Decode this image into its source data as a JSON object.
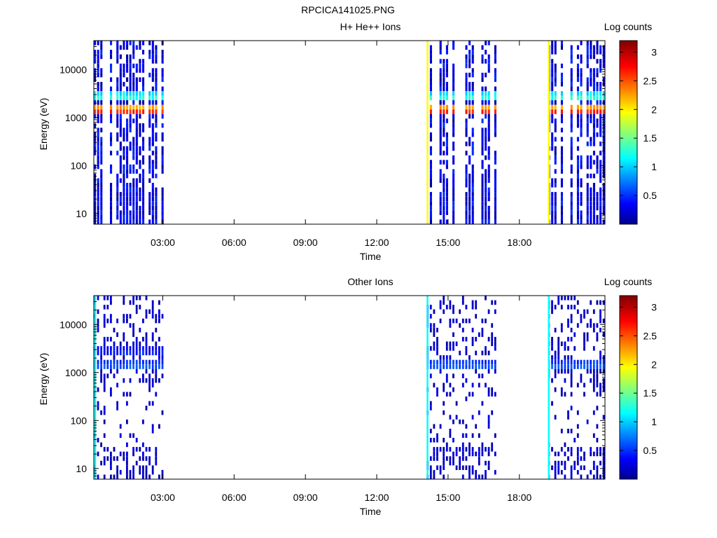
{
  "figure": {
    "title": "RPCICA141025.PNG"
  },
  "chart_data": [
    {
      "type": "heatmap",
      "title": "H+ He++ Ions",
      "xlabel": "Time",
      "ylabel": "Energy (eV)",
      "yscale": "log",
      "ylim": [
        6,
        40000
      ],
      "xlim_hours": [
        0.1,
        21.6
      ],
      "xticks": [
        "03:00",
        "06:00",
        "09:00",
        "12:00",
        "15:00",
        "18:00"
      ],
      "yticks": [
        "10",
        "100",
        "1000",
        "10000"
      ],
      "colorbar": {
        "label": "Log counts",
        "ticks": [
          "0.5",
          "1",
          "1.5",
          "2",
          "2.5",
          "3"
        ],
        "range": [
          0,
          3.2
        ]
      },
      "data_intervals_hours": [
        [
          0.1,
          3.0
        ],
        [
          14.1,
          17.0
        ],
        [
          19.2,
          21.6
        ]
      ],
      "dominant_bands": [
        {
          "energy_eV": 1400,
          "log_counts": 2.9,
          "intervals_hours": [
            [
              0.1,
              3.0
            ],
            [
              14.1,
              17.0
            ],
            [
              19.2,
              21.6
            ]
          ]
        },
        {
          "energy_eV": 2700,
          "log_counts": 1.4,
          "intervals_hours": [
            [
              0.1,
              3.0
            ],
            [
              14.1,
              17.0
            ],
            [
              19.2,
              21.6
            ]
          ]
        }
      ],
      "background_log_counts": 0.5,
      "edge_lines": [
        {
          "time_hours": 14.1,
          "log_counts": 2.0
        },
        {
          "time_hours": 19.2,
          "log_counts": 2.0
        }
      ]
    },
    {
      "type": "heatmap",
      "title": "Other Ions",
      "xlabel": "Time",
      "ylabel": "Energy (eV)",
      "yscale": "log",
      "ylim": [
        6,
        40000
      ],
      "xlim_hours": [
        0.1,
        21.6
      ],
      "xticks": [
        "03:00",
        "06:00",
        "09:00",
        "12:00",
        "15:00",
        "18:00"
      ],
      "yticks": [
        "10",
        "100",
        "1000",
        "10000"
      ],
      "colorbar": {
        "label": "Log counts",
        "ticks": [
          "0.5",
          "1",
          "1.5",
          "2",
          "2.5",
          "3"
        ],
        "range": [
          0,
          3.2
        ]
      },
      "data_intervals_hours": [
        [
          0.1,
          3.0
        ],
        [
          14.1,
          17.0
        ],
        [
          19.2,
          21.6
        ]
      ],
      "dominant_bands": [
        {
          "energy_eV": 1400,
          "log_counts": 0.7,
          "intervals_hours": [
            [
              0.1,
              3.0
            ],
            [
              14.1,
              17.0
            ],
            [
              19.2,
              21.6
            ]
          ]
        },
        {
          "energy_eV": 2700,
          "log_counts": 0.5,
          "intervals_hours": [
            [
              0.1,
              3.0
            ]
          ]
        }
      ],
      "background_log_counts": 0.2,
      "edge_lines": [
        {
          "time_hours": 0.12,
          "log_counts": 1.2
        },
        {
          "time_hours": 14.1,
          "log_counts": 1.2
        },
        {
          "time_hours": 19.2,
          "log_counts": 1.2
        }
      ]
    }
  ]
}
